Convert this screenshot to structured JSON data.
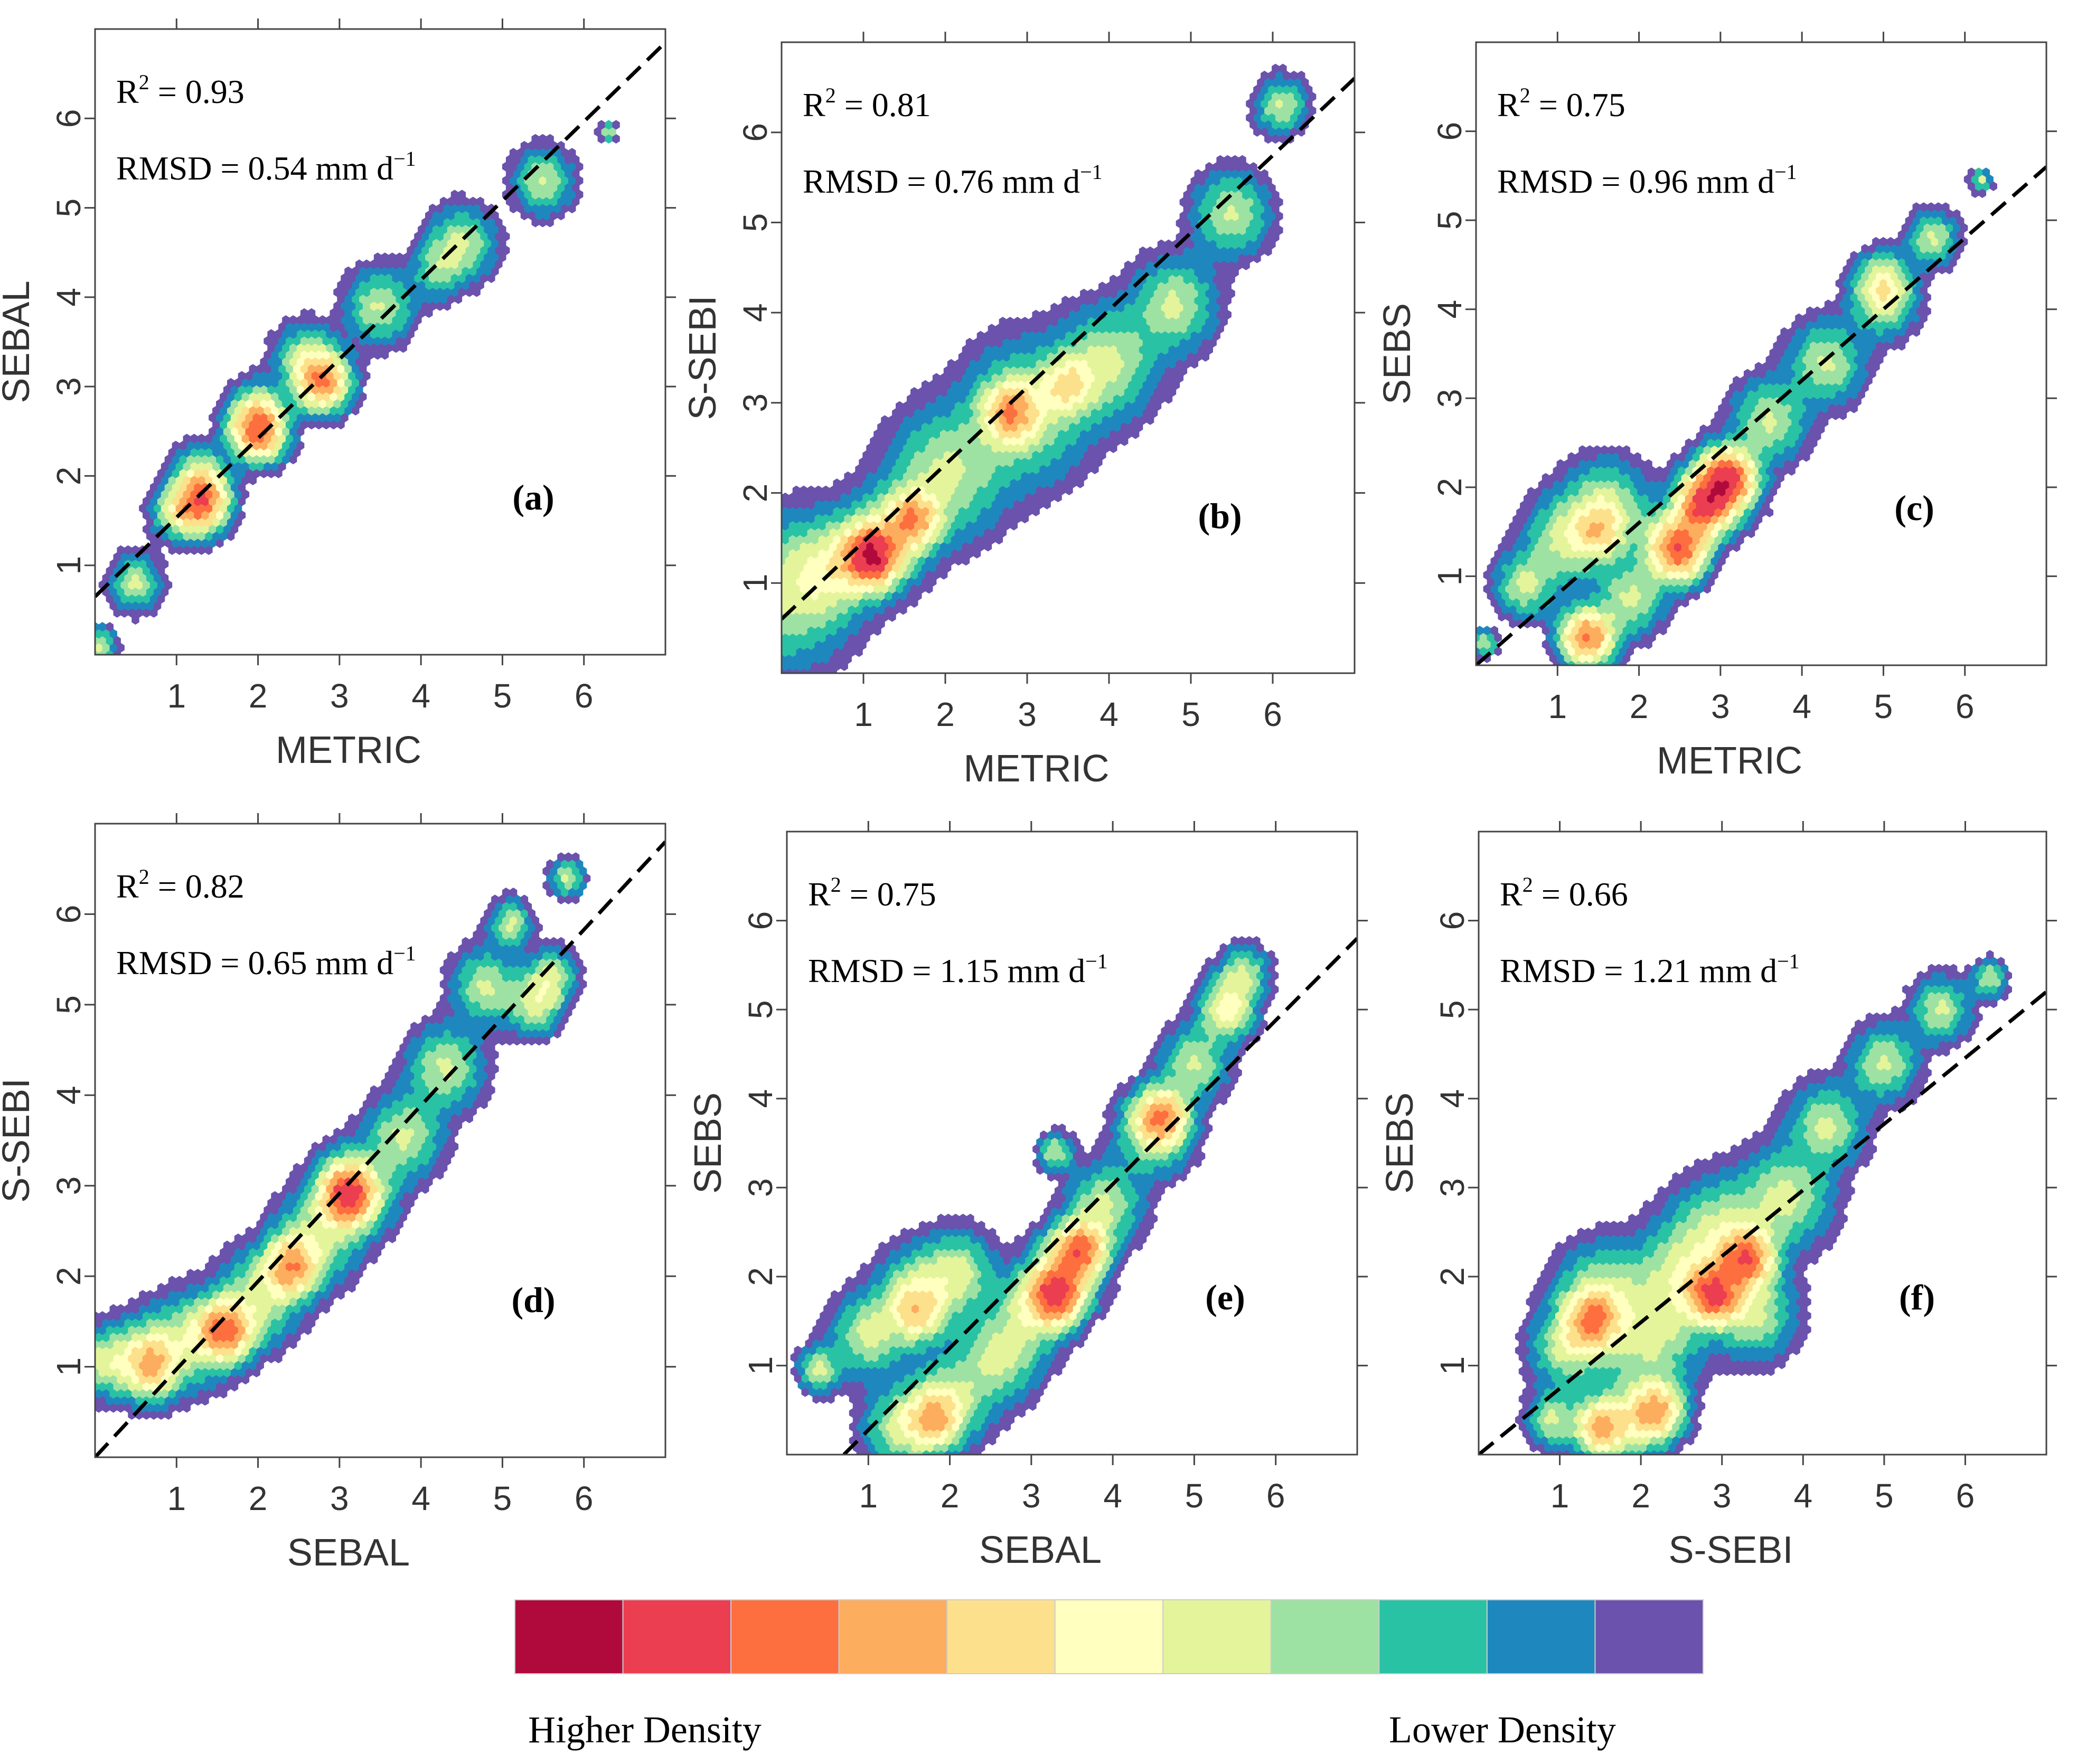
{
  "chart_data": [
    {
      "type": "scatter",
      "panel_label": "(a)",
      "xlabel": "METRIC",
      "ylabel": "SEBAL",
      "r2_prefix": "R",
      "r2_sup": "2",
      "r2_value": " = 0.93",
      "rmsd_text": "RMSD = 0.54 mm d",
      "rmsd_sup": "−1",
      "xlim": [
        0,
        7
      ],
      "ylim": [
        0,
        7
      ],
      "xticks": [
        1,
        2,
        3,
        4,
        5,
        6
      ],
      "yticks": [
        1,
        2,
        3,
        4,
        5,
        6
      ],
      "fit_line": [
        [
          0,
          0.65
        ],
        [
          7,
          6.85
        ]
      ],
      "density_ridge": [
        [
          0.05,
          0.1,
          0.2
        ],
        [
          0.5,
          0.8,
          0.3
        ],
        [
          1.0,
          1.6,
          0.3
        ],
        [
          1.3,
          2.0,
          0.33
        ],
        [
          2.0,
          2.7,
          0.35
        ],
        [
          2.6,
          3.3,
          0.38
        ],
        [
          3.5,
          3.9,
          0.4
        ],
        [
          4.5,
          4.6,
          0.4
        ],
        [
          5.5,
          5.3,
          0.35
        ],
        [
          6.3,
          5.85,
          0.1
        ]
      ],
      "density_peaks": [
        [
          1.3,
          1.7,
          0.6
        ],
        [
          2.0,
          2.5,
          0.55
        ],
        [
          2.8,
          3.05,
          0.5
        ],
        [
          4.2,
          4.3,
          0.12
        ]
      ]
    },
    {
      "type": "scatter",
      "panel_label": "(b)",
      "xlabel": "METRIC",
      "ylabel": "S-SEBI",
      "r2_prefix": "R",
      "r2_sup": "2",
      "r2_value": " = 0.81",
      "rmsd_text": "RMSD = 0.76 mm d",
      "rmsd_sup": "−1",
      "xlim": [
        0,
        7
      ],
      "ylim": [
        0,
        7
      ],
      "xticks": [
        1,
        2,
        3,
        4,
        5,
        6
      ],
      "yticks": [
        1,
        2,
        3,
        4,
        5,
        6
      ],
      "fit_line": [
        [
          0,
          0.6
        ],
        [
          7,
          6.6
        ]
      ],
      "density_ridge": [
        [
          0.05,
          0.9,
          0.8
        ],
        [
          0.6,
          1.15,
          0.5
        ],
        [
          1.2,
          1.45,
          0.55
        ],
        [
          2.0,
          2.2,
          0.7
        ],
        [
          3.0,
          2.9,
          0.75
        ],
        [
          4.0,
          3.45,
          0.6
        ],
        [
          4.8,
          4.1,
          0.5
        ],
        [
          5.5,
          5.1,
          0.45
        ],
        [
          6.1,
          6.3,
          0.3
        ]
      ],
      "density_peaks": [
        [
          1.1,
          1.3,
          0.75
        ],
        [
          1.6,
          1.7,
          0.45
        ],
        [
          2.8,
          2.9,
          0.4
        ],
        [
          3.5,
          3.2,
          0.25
        ]
      ]
    },
    {
      "type": "scatter",
      "panel_label": "(c)",
      "xlabel": "METRIC",
      "ylabel": "SEBS",
      "r2_prefix": "R",
      "r2_sup": "2",
      "r2_value": " = 0.75",
      "rmsd_text": "RMSD = 0.96 mm d",
      "rmsd_sup": "−1",
      "xlim": [
        0,
        7
      ],
      "ylim": [
        0,
        7
      ],
      "xticks": [
        1,
        2,
        3,
        4,
        5,
        6
      ],
      "yticks": [
        1,
        2,
        3,
        4,
        5,
        6
      ],
      "fit_line": [
        [
          0,
          0
        ],
        [
          7,
          5.6
        ]
      ],
      "density_ridge": [
        [
          0.1,
          0.25,
          0.15
        ],
        [
          0.6,
          0.9,
          0.35
        ],
        [
          1.1,
          1.4,
          0.5
        ],
        [
          1.6,
          1.8,
          0.5
        ],
        [
          1.3,
          0.35,
          0.3
        ],
        [
          1.9,
          0.75,
          0.4
        ],
        [
          2.4,
          1.35,
          0.45
        ],
        [
          3.0,
          2.0,
          0.45
        ],
        [
          3.6,
          2.75,
          0.45
        ],
        [
          4.3,
          3.4,
          0.45
        ],
        [
          5.0,
          4.1,
          0.4
        ],
        [
          5.6,
          4.8,
          0.3
        ],
        [
          6.2,
          5.45,
          0.12
        ]
      ],
      "density_peaks": [
        [
          2.8,
          1.8,
          0.65
        ],
        [
          3.1,
          2.1,
          0.6
        ],
        [
          2.5,
          1.3,
          0.5
        ],
        [
          1.4,
          0.3,
          0.4
        ],
        [
          1.5,
          1.5,
          0.25
        ],
        [
          5.0,
          4.3,
          0.2
        ]
      ]
    },
    {
      "type": "scatter",
      "panel_label": "(d)",
      "xlabel": "SEBAL",
      "ylabel": "S-SEBI",
      "r2_prefix": "R",
      "r2_sup": "2",
      "r2_value": " = 0.82",
      "rmsd_text": "RMSD = 0.65 mm d",
      "rmsd_sup": "−1",
      "xlim": [
        0,
        7
      ],
      "ylim": [
        0,
        7
      ],
      "xticks": [
        1,
        2,
        3,
        4,
        5,
        6
      ],
      "yticks": [
        1,
        2,
        3,
        4,
        5,
        6
      ],
      "fit_line": [
        [
          0,
          0
        ],
        [
          7,
          6.8
        ]
      ],
      "density_ridge": [
        [
          0.1,
          1.05,
          0.35
        ],
        [
          0.6,
          1.1,
          0.45
        ],
        [
          1.2,
          1.3,
          0.5
        ],
        [
          2.0,
          1.75,
          0.5
        ],
        [
          2.7,
          2.4,
          0.5
        ],
        [
          3.2,
          2.95,
          0.5
        ],
        [
          3.8,
          3.55,
          0.45
        ],
        [
          4.3,
          4.3,
          0.45
        ],
        [
          4.8,
          5.2,
          0.4
        ],
        [
          5.1,
          5.9,
          0.25
        ],
        [
          5.6,
          5.3,
          0.3
        ],
        [
          5.8,
          6.4,
          0.2
        ]
      ],
      "density_peaks": [
        [
          3.1,
          2.9,
          0.65
        ],
        [
          1.6,
          1.4,
          0.55
        ],
        [
          2.4,
          2.1,
          0.45
        ],
        [
          0.7,
          1.0,
          0.3
        ],
        [
          5.4,
          5.0,
          0.2
        ]
      ]
    },
    {
      "type": "scatter",
      "panel_label": "(e)",
      "xlabel": "SEBAL",
      "ylabel": "SEBS",
      "r2_prefix": "R",
      "r2_sup": "2",
      "r2_value": " = 0.75",
      "rmsd_text": "RMSD = 1.15 mm d",
      "rmsd_sup": "−1",
      "xlim": [
        0,
        7
      ],
      "ylim": [
        0,
        7
      ],
      "xticks": [
        1,
        2,
        3,
        4,
        5,
        6
      ],
      "yticks": [
        1,
        2,
        3,
        4,
        5,
        6
      ],
      "fit_line": [
        [
          0.7,
          0
        ],
        [
          7,
          5.8
        ]
      ],
      "density_ridge": [
        [
          0.4,
          0.95,
          0.25
        ],
        [
          1.0,
          1.35,
          0.45
        ],
        [
          1.6,
          1.8,
          0.5
        ],
        [
          2.1,
          2.05,
          0.45
        ],
        [
          1.4,
          0.3,
          0.45
        ],
        [
          2.0,
          0.6,
          0.5
        ],
        [
          2.6,
          1.1,
          0.5
        ],
        [
          3.0,
          1.6,
          0.45
        ],
        [
          3.4,
          2.05,
          0.45
        ],
        [
          3.9,
          2.8,
          0.45
        ],
        [
          4.5,
          3.6,
          0.45
        ],
        [
          5.0,
          4.4,
          0.4
        ],
        [
          5.6,
          5.4,
          0.3
        ],
        [
          3.3,
          3.4,
          0.2
        ]
      ],
      "density_peaks": [
        [
          3.3,
          1.8,
          0.65
        ],
        [
          3.6,
          2.3,
          0.55
        ],
        [
          4.6,
          3.8,
          0.45
        ],
        [
          5.4,
          5.0,
          0.3
        ],
        [
          1.8,
          0.4,
          0.35
        ],
        [
          1.6,
          1.6,
          0.25
        ]
      ]
    },
    {
      "type": "scatter",
      "panel_label": "(f)",
      "xlabel": "S-SEBI",
      "ylabel": "SEBS",
      "r2_prefix": "R",
      "r2_sup": "2",
      "r2_value": " = 0.66",
      "rmsd_text": "RMSD = 1.21 mm d",
      "rmsd_sup": "−1",
      "xlim": [
        0,
        7
      ],
      "ylim": [
        0,
        7
      ],
      "xticks": [
        1,
        2,
        3,
        4,
        5,
        6
      ],
      "yticks": [
        1,
        2,
        3,
        4,
        5,
        6
      ],
      "fit_line": [
        [
          0,
          0
        ],
        [
          7,
          5.2
        ]
      ],
      "density_ridge": [
        [
          0.9,
          0.4,
          0.3
        ],
        [
          1.1,
          1.2,
          0.45
        ],
        [
          1.5,
          1.8,
          0.55
        ],
        [
          1.9,
          0.4,
          0.45
        ],
        [
          2.1,
          1.3,
          0.6
        ],
        [
          2.5,
          2.0,
          0.6
        ],
        [
          3.0,
          2.5,
          0.6
        ],
        [
          3.4,
          1.6,
          0.5
        ],
        [
          3.8,
          2.9,
          0.55
        ],
        [
          4.3,
          3.7,
          0.45
        ],
        [
          5.0,
          4.4,
          0.4
        ],
        [
          5.7,
          5.0,
          0.35
        ],
        [
          6.3,
          5.35,
          0.2
        ]
      ],
      "density_peaks": [
        [
          2.9,
          1.8,
          0.6
        ],
        [
          3.3,
          2.2,
          0.55
        ],
        [
          1.4,
          1.5,
          0.45
        ],
        [
          1.5,
          0.3,
          0.4
        ],
        [
          2.2,
          0.5,
          0.4
        ]
      ]
    }
  ],
  "colorbar": {
    "colors": [
      "#b00a3d",
      "#eb3e50",
      "#fd6f3e",
      "#fdad5e",
      "#fde08b",
      "#ffffbf",
      "#e4f49a",
      "#9de2a3",
      "#2ac2a4",
      "#1e88be",
      "#6a52ad"
    ],
    "left_label": "Higher Density",
    "right_label": "Lower Density"
  }
}
